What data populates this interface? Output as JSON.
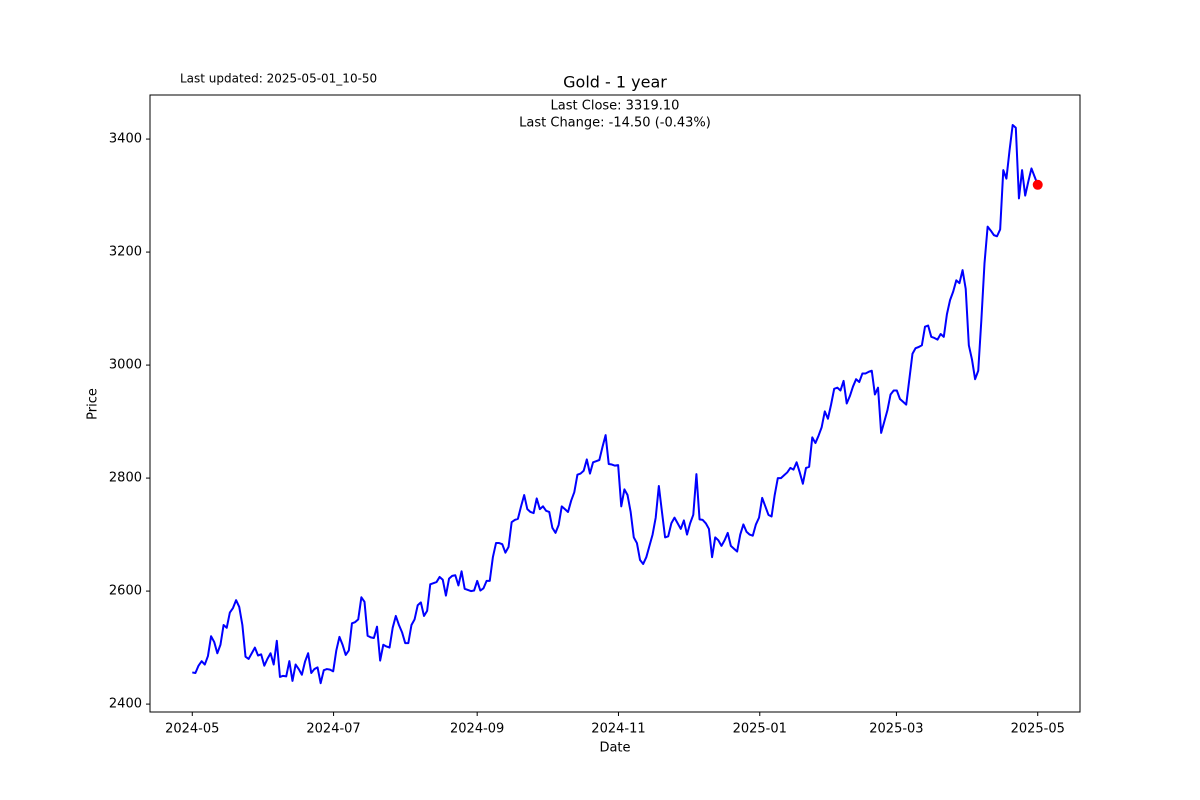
{
  "chart_data": {
    "type": "line",
    "title": "Gold - 1 year",
    "last_updated": "Last updated: 2025-05-01_10-50",
    "annotations": [
      "Last Close: 3319.10",
      "Last Change: -14.50 (-0.43%)"
    ],
    "xlabel": "Date",
    "ylabel": "Price",
    "color": "blue",
    "last_point_color": "red",
    "xlim": [
      "2024-05",
      "2025-05"
    ],
    "xticks": [
      "2024-05",
      "2024-07",
      "2024-09",
      "2024-11",
      "2025-01",
      "2025-03",
      "2025-05"
    ],
    "ylim": [
      2386,
      3478
    ],
    "yticks": [
      2400,
      2600,
      2800,
      3000,
      3200,
      3400
    ],
    "values": [
      2456,
      2455,
      2468,
      2476,
      2470,
      2485,
      2520,
      2510,
      2490,
      2505,
      2540,
      2535,
      2562,
      2570,
      2584,
      2572,
      2540,
      2484,
      2480,
      2490,
      2500,
      2486,
      2488,
      2468,
      2480,
      2490,
      2470,
      2512,
      2448,
      2450,
      2449,
      2476,
      2441,
      2470,
      2462,
      2452,
      2475,
      2490,
      2455,
      2462,
      2465,
      2437,
      2460,
      2462,
      2461,
      2458,
      2495,
      2519,
      2505,
      2487,
      2495,
      2543,
      2545,
      2550,
      2589,
      2581,
      2521,
      2518,
      2517,
      2537,
      2477,
      2505,
      2502,
      2500,
      2535,
      2556,
      2540,
      2527,
      2508,
      2508,
      2540,
      2550,
      2575,
      2580,
      2556,
      2565,
      2612,
      2614,
      2616,
      2625,
      2620,
      2592,
      2622,
      2627,
      2628,
      2610,
      2635,
      2604,
      2602,
      2600,
      2601,
      2618,
      2601,
      2605,
      2618,
      2618,
      2660,
      2685,
      2685,
      2683,
      2668,
      2678,
      2722,
      2726,
      2728,
      2750,
      2770,
      2745,
      2740,
      2738,
      2764,
      2745,
      2750,
      2742,
      2740,
      2712,
      2703,
      2717,
      2750,
      2745,
      2740,
      2760,
      2775,
      2806,
      2808,
      2813,
      2833,
      2808,
      2828,
      2830,
      2832,
      2855,
      2876,
      2825,
      2824,
      2822,
      2823,
      2750,
      2780,
      2770,
      2740,
      2695,
      2685,
      2655,
      2648,
      2660,
      2680,
      2700,
      2730,
      2786,
      2740,
      2695,
      2697,
      2720,
      2730,
      2720,
      2710,
      2725,
      2700,
      2720,
      2735,
      2807,
      2727,
      2726,
      2720,
      2710,
      2660,
      2695,
      2690,
      2680,
      2690,
      2703,
      2680,
      2675,
      2670,
      2700,
      2718,
      2705,
      2700,
      2698,
      2718,
      2730,
      2765,
      2750,
      2735,
      2732,
      2770,
      2800,
      2800,
      2805,
      2810,
      2818,
      2815,
      2828,
      2810,
      2790,
      2818,
      2820,
      2872,
      2862,
      2875,
      2890,
      2918,
      2905,
      2930,
      2958,
      2960,
      2955,
      2972,
      2932,
      2945,
      2962,
      2975,
      2970,
      2985,
      2985,
      2988,
      2990,
      2948,
      2960,
      2880,
      2900,
      2920,
      2948,
      2955,
      2955,
      2940,
      2935,
      2930,
      2975,
      3020,
      3030,
      3032,
      3035,
      3068,
      3070,
      3050,
      3048,
      3045,
      3055,
      3050,
      3090,
      3115,
      3130,
      3150,
      3145,
      3168,
      3135,
      3035,
      3010,
      2975,
      2990,
      3080,
      3180,
      3245,
      3238,
      3230,
      3228,
      3240,
      3345,
      3330,
      3380,
      3425,
      3420,
      3295,
      3345,
      3300,
      3325,
      3348,
      3333.6,
      3319.1
    ]
  }
}
